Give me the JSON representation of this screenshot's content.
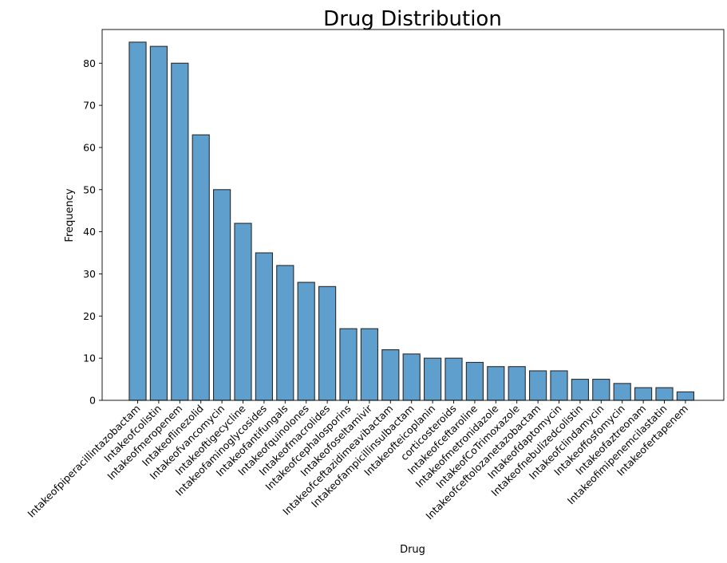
{
  "chart_data": {
    "type": "bar",
    "title": "Drug Distribution",
    "xlabel": "Drug",
    "ylabel": "Frequency",
    "ylim": [
      0,
      88
    ],
    "yticks": [
      0,
      10,
      20,
      30,
      40,
      50,
      60,
      70,
      80
    ],
    "grid": false,
    "bar_color": "#5f9fcd",
    "edge_color": "#2a2a2a",
    "categories": [
      "Intakeofpiperacillintazobactam",
      "Intakeofcolistin",
      "Intakeofmeropenem",
      "Intakeoflinezolid",
      "Intakeofvancomycin",
      "Intakeoftigecycline",
      "Intakeofaminoglycosides",
      "Intakeofantifungals",
      "Intakeofquinolones",
      "Intakeofmacrolides",
      "Intakeofcephalosporins",
      "Intakeofoseltamivir",
      "Intakeofceftazidimeavibactam",
      "Intakeofampicillinsulbactam",
      "Intakeofteicoplanin",
      "corticosteroids",
      "Intakeofceftaroline",
      "Intakeofmetronidazole",
      "IntakeofCoTrimoxazole",
      "Intakeofceftolozanetazobactam",
      "Intakeofdaptomycin",
      "Intakeofnebulizedcolistin",
      "Intakeofclindamycin",
      "Intakeoffosfomycin",
      "Intakeofaztreonam",
      "Intakeofimipenemcilastatin",
      "Intakeofertapenem"
    ],
    "values": [
      85,
      84,
      80,
      63,
      50,
      42,
      35,
      32,
      28,
      27,
      17,
      17,
      12,
      11,
      10,
      10,
      9,
      8,
      8,
      7,
      7,
      5,
      5,
      4,
      3,
      3,
      2
    ]
  }
}
